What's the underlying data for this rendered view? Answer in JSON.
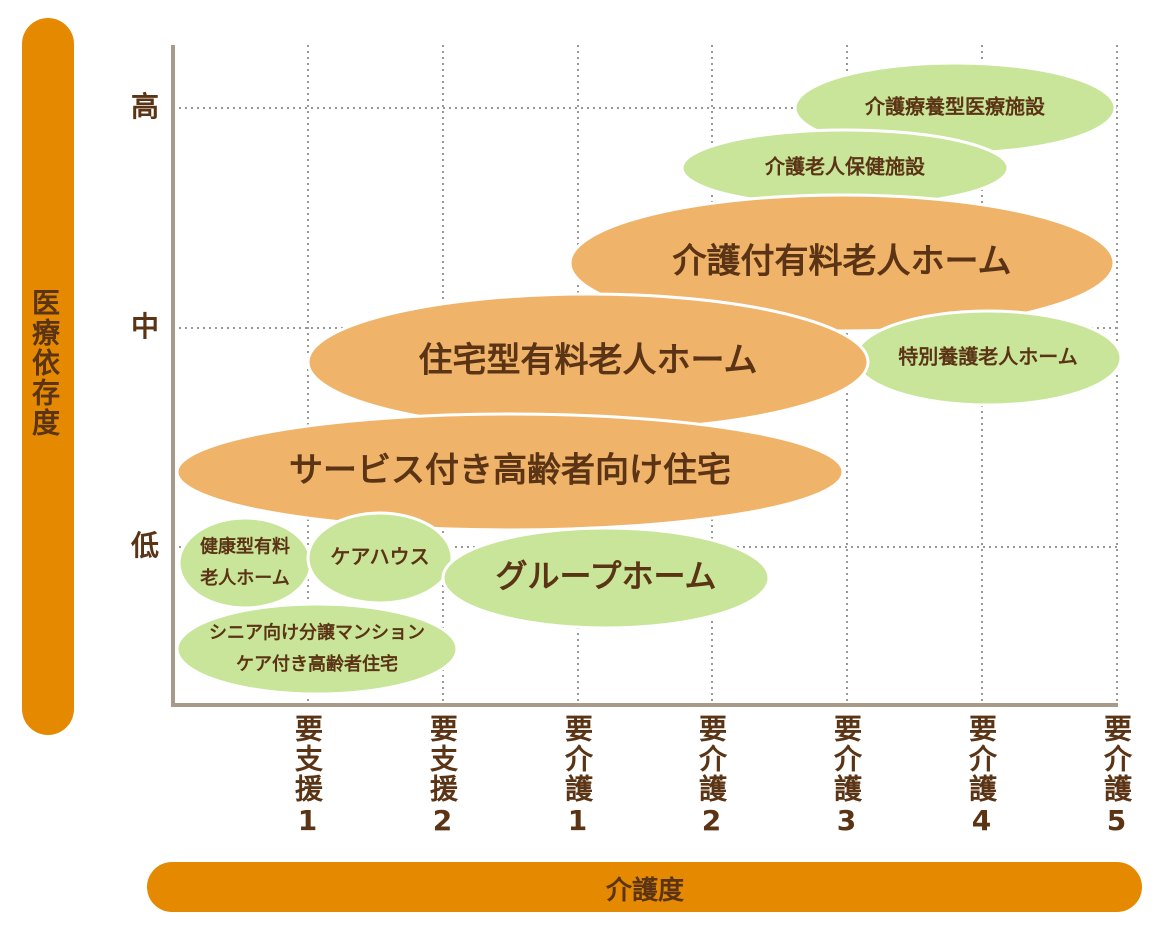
{
  "y_axis": {
    "title": "医療依存度",
    "labels": [
      "高",
      "中",
      "低"
    ]
  },
  "x_axis": {
    "title": "介護度",
    "labels": [
      "要支援1",
      "要支援2",
      "要介護1",
      "要介護2",
      "要介護3",
      "要介護4",
      "要介護5"
    ]
  },
  "nodes": [
    {
      "lines": [
        "介護療養型医療施設"
      ]
    },
    {
      "lines": [
        "介護老人保健施設"
      ]
    },
    {
      "lines": [
        "介護付有料老人ホーム"
      ]
    },
    {
      "lines": [
        "特別養護老人ホーム"
      ]
    },
    {
      "lines": [
        "住宅型有料老人ホーム"
      ]
    },
    {
      "lines": [
        "サービス付き高齢者向け住宅"
      ]
    },
    {
      "lines": [
        "健康型有料",
        "老人ホーム"
      ]
    },
    {
      "lines": [
        "ケアハウス"
      ]
    },
    {
      "lines": [
        "グループホーム"
      ]
    },
    {
      "lines": [
        "シニア向け分譲マンション",
        "ケア付き高齢者住宅"
      ]
    }
  ]
}
